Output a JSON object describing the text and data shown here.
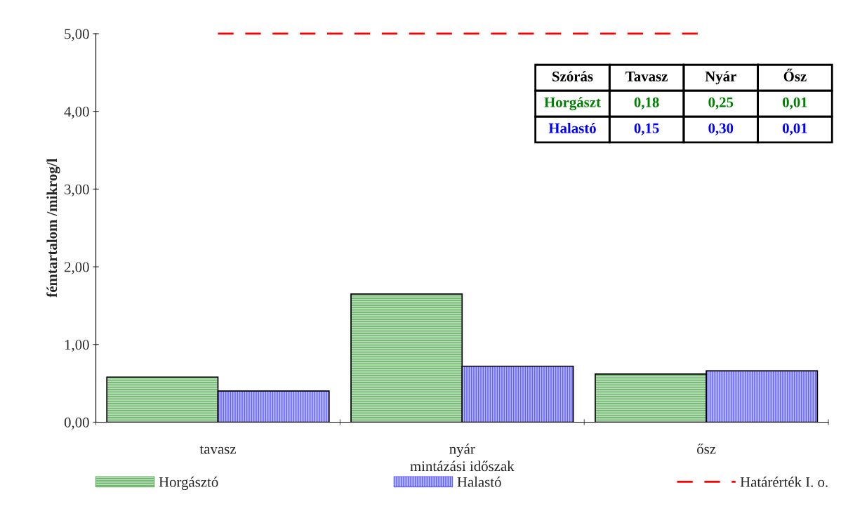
{
  "chart_data": {
    "type": "bar",
    "xlabel": "mintázási időszak",
    "ylabel": "fémtartalom /mikrog/l",
    "categories": [
      "tavasz",
      "nyár",
      "ősz"
    ],
    "series": [
      {
        "name": "Horgásztó",
        "color": "#60b060",
        "values": [
          0.58,
          1.65,
          0.62
        ]
      },
      {
        "name": "Halastó",
        "color": "#6060ff",
        "values": [
          0.4,
          0.72,
          0.66
        ]
      }
    ],
    "ylim": [
      0,
      5
    ],
    "yticks": [
      {
        "value": 0,
        "label": "0,00"
      },
      {
        "value": 1,
        "label": "1,00"
      },
      {
        "value": 2,
        "label": "2,00"
      },
      {
        "value": 3,
        "label": "3,00"
      },
      {
        "value": 4,
        "label": "4,00"
      },
      {
        "value": 5,
        "label": "5,00"
      }
    ],
    "ref_lines": [
      {
        "axis": "y",
        "value": 5,
        "label": "Határérték I. o.",
        "color": "#ff0000",
        "line_style": "dashed"
      }
    ],
    "annotations": [
      "Szórás",
      "Tavasz",
      "Nyár",
      "Ősz",
      "Horgászt",
      "0,18",
      "0,25",
      "0,01",
      "Halastó",
      "0,15",
      "0,30",
      "0,01"
    ],
    "legend": "bottom",
    "grid": false
  }
}
